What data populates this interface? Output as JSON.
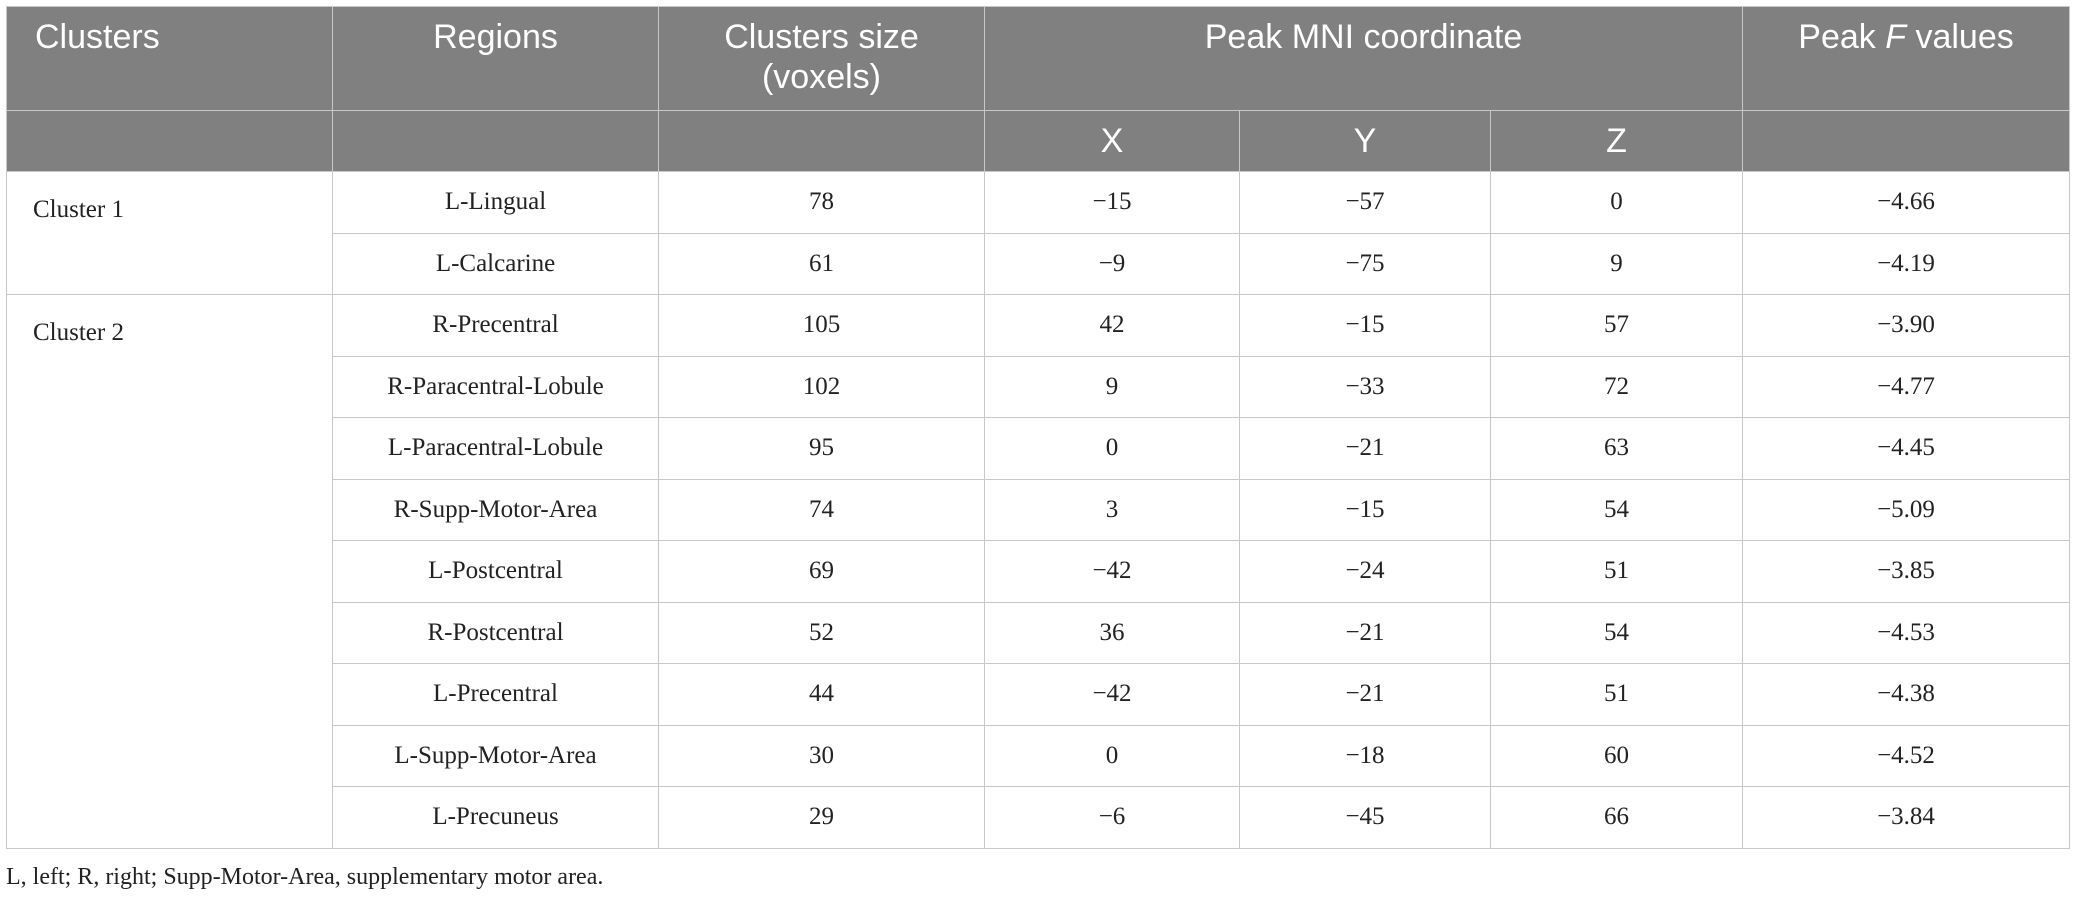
{
  "table": {
    "header": {
      "clusters": "Clusters",
      "regions": "Regions",
      "cluster_size_line1": "Clusters size",
      "cluster_size_line2": "(voxels)",
      "peak_mni": "Peak MNI coordinate",
      "peak_f_prefix": "Peak ",
      "peak_f_italic": "F",
      "peak_f_suffix": " values",
      "x": "X",
      "y": "Y",
      "z": "Z"
    },
    "clusters": [
      {
        "name": "Cluster 1",
        "rows": [
          {
            "region": "L-Lingual",
            "size": "78",
            "x": "−15",
            "y": "−57",
            "z": "0",
            "f": "−4.66"
          },
          {
            "region": "L-Calcarine",
            "size": "61",
            "x": "−9",
            "y": "−75",
            "z": "9",
            "f": "−4.19"
          }
        ]
      },
      {
        "name": "Cluster 2",
        "rows": [
          {
            "region": "R-Precentral",
            "size": "105",
            "x": "42",
            "y": "−15",
            "z": "57",
            "f": "−3.90"
          },
          {
            "region": "R-Paracentral-Lobule",
            "size": "102",
            "x": "9",
            "y": "−33",
            "z": "72",
            "f": "−4.77"
          },
          {
            "region": "L-Paracentral-Lobule",
            "size": "95",
            "x": "0",
            "y": "−21",
            "z": "63",
            "f": "−4.45"
          },
          {
            "region": "R-Supp-Motor-Area",
            "size": "74",
            "x": "3",
            "y": "−15",
            "z": "54",
            "f": "−5.09"
          },
          {
            "region": "L-Postcentral",
            "size": "69",
            "x": "−42",
            "y": "−24",
            "z": "51",
            "f": "−3.85"
          },
          {
            "region": "R-Postcentral",
            "size": "52",
            "x": "36",
            "y": "−21",
            "z": "54",
            "f": "−4.53"
          },
          {
            "region": "L-Precentral",
            "size": "44",
            "x": "−42",
            "y": "−21",
            "z": "51",
            "f": "−4.38"
          },
          {
            "region": "L-Supp-Motor-Area",
            "size": "30",
            "x": "0",
            "y": "−18",
            "z": "60",
            "f": "−4.52"
          },
          {
            "region": "L-Precuneus",
            "size": "29",
            "x": "−6",
            "y": "−45",
            "z": "66",
            "f": "−3.84"
          }
        ]
      }
    ]
  },
  "footnote": "L, left; R, right; Supp-Motor-Area, supplementary motor area."
}
